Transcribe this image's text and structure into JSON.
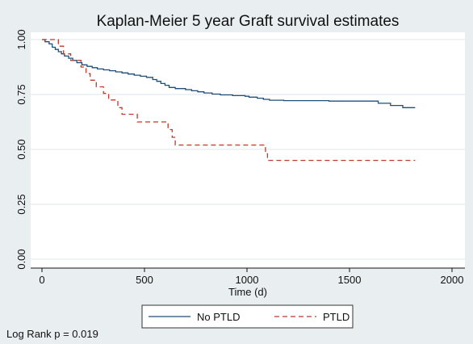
{
  "chart_data": {
    "type": "line",
    "title": "Kaplan-Meier 5 year Graft survival estimates",
    "xlabel": "Time (d)",
    "ylabel": "",
    "xlim": [
      0,
      2000
    ],
    "ylim": [
      0,
      1
    ],
    "x_ticks": [
      0,
      500,
      1000,
      1500,
      2000
    ],
    "y_ticks": [
      "0.00",
      "0.25",
      "0.50",
      "0.75",
      "1.00"
    ],
    "grid": "horizontal",
    "legend_position": "bottom",
    "step": true,
    "series": [
      {
        "name": "No PTLD",
        "color": "#1f4e79",
        "line_style": "solid",
        "points": [
          [
            0,
            1.0
          ],
          [
            15,
            0.99
          ],
          [
            35,
            0.98
          ],
          [
            50,
            0.965
          ],
          [
            65,
            0.955
          ],
          [
            80,
            0.945
          ],
          [
            95,
            0.935
          ],
          [
            110,
            0.925
          ],
          [
            130,
            0.915
          ],
          [
            150,
            0.905
          ],
          [
            170,
            0.895
          ],
          [
            195,
            0.885
          ],
          [
            220,
            0.878
          ],
          [
            245,
            0.872
          ],
          [
            270,
            0.866
          ],
          [
            300,
            0.862
          ],
          [
            330,
            0.858
          ],
          [
            360,
            0.853
          ],
          [
            390,
            0.848
          ],
          [
            420,
            0.843
          ],
          [
            450,
            0.838
          ],
          [
            480,
            0.833
          ],
          [
            510,
            0.828
          ],
          [
            540,
            0.818
          ],
          [
            560,
            0.81
          ],
          [
            580,
            0.8
          ],
          [
            600,
            0.792
          ],
          [
            620,
            0.782
          ],
          [
            650,
            0.777
          ],
          [
            700,
            0.772
          ],
          [
            730,
            0.767
          ],
          [
            760,
            0.762
          ],
          [
            790,
            0.757
          ],
          [
            830,
            0.752
          ],
          [
            870,
            0.748
          ],
          [
            930,
            0.745
          ],
          [
            990,
            0.742
          ],
          [
            1010,
            0.738
          ],
          [
            1050,
            0.733
          ],
          [
            1080,
            0.728
          ],
          [
            1110,
            0.724
          ],
          [
            1180,
            0.722
          ],
          [
            1400,
            0.72
          ],
          [
            1640,
            0.71
          ],
          [
            1700,
            0.7
          ],
          [
            1760,
            0.69
          ],
          [
            1820,
            0.69
          ]
        ]
      },
      {
        "name": "PTLD",
        "color": "#c0392b",
        "line_style": "dashed",
        "points": [
          [
            0,
            1.0
          ],
          [
            80,
            0.97
          ],
          [
            105,
            0.935
          ],
          [
            140,
            0.905
          ],
          [
            190,
            0.875
          ],
          [
            215,
            0.845
          ],
          [
            235,
            0.815
          ],
          [
            265,
            0.785
          ],
          [
            300,
            0.755
          ],
          [
            325,
            0.725
          ],
          [
            370,
            0.69
          ],
          [
            390,
            0.66
          ],
          [
            465,
            0.625
          ],
          [
            615,
            0.59
          ],
          [
            635,
            0.555
          ],
          [
            650,
            0.52
          ],
          [
            1090,
            0.48
          ],
          [
            1100,
            0.45
          ],
          [
            1820,
            0.45
          ]
        ]
      }
    ],
    "annotation": "Log Rank p = 0.019"
  }
}
